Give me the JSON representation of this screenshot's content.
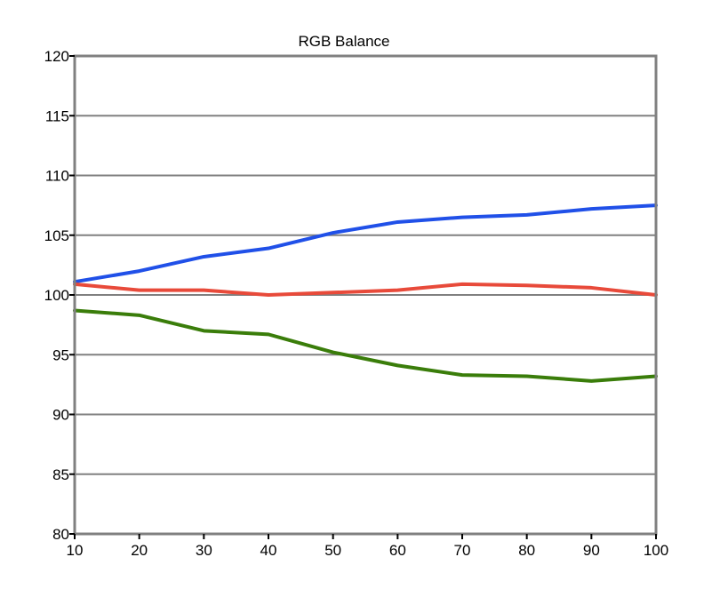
{
  "chart_data": {
    "type": "line",
    "title": "RGB Balance",
    "xlabel": "",
    "ylabel": "",
    "x": [
      10,
      20,
      30,
      40,
      50,
      60,
      70,
      80,
      90,
      100
    ],
    "xlim": [
      10,
      100
    ],
    "ylim": [
      80,
      120
    ],
    "xticks": [
      "10",
      "20",
      "30",
      "40",
      "50",
      "60",
      "70",
      "80",
      "90",
      "100"
    ],
    "yticks": [
      "80",
      "85",
      "90",
      "95",
      "100",
      "105",
      "110",
      "115",
      "120"
    ],
    "grid": true,
    "legend": "none",
    "series": [
      {
        "color": "#2050e8",
        "values": [
          101.1,
          102.0,
          103.2,
          103.9,
          105.2,
          106.1,
          106.5,
          106.7,
          107.2,
          107.5
        ]
      },
      {
        "color": "#e84a3a",
        "values": [
          100.9,
          100.4,
          100.4,
          100.0,
          100.2,
          100.4,
          100.9,
          100.8,
          100.6,
          100.0
        ]
      },
      {
        "color": "#3a7d0a",
        "values": [
          98.7,
          98.3,
          97.0,
          96.7,
          95.2,
          94.1,
          93.3,
          93.2,
          92.8,
          93.2
        ]
      }
    ]
  }
}
